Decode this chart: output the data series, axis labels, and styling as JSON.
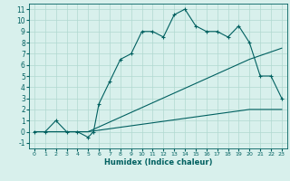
{
  "title": "",
  "xlabel": "Humidex (Indice chaleur)",
  "bg_color": "#d8f0ec",
  "line_color": "#006060",
  "grid_color": "#b0d8d0",
  "xlim": [
    -0.5,
    23.5
  ],
  "ylim": [
    -1.5,
    11.5
  ],
  "xticks": [
    0,
    1,
    2,
    3,
    4,
    5,
    6,
    7,
    8,
    9,
    10,
    11,
    12,
    13,
    14,
    15,
    16,
    17,
    18,
    19,
    20,
    21,
    22,
    23
  ],
  "yticks": [
    -1,
    0,
    1,
    2,
    3,
    4,
    5,
    6,
    7,
    8,
    9,
    10,
    11
  ],
  "line1_x": [
    0,
    1,
    2,
    3,
    4,
    5,
    5.5,
    6,
    7,
    8,
    9,
    10,
    11,
    12,
    13,
    14,
    15,
    16,
    17,
    18,
    19,
    20,
    21,
    22,
    23
  ],
  "line1_y": [
    0,
    0,
    1,
    0,
    0,
    -0.5,
    0,
    2.5,
    4.5,
    6.5,
    7,
    9,
    9,
    8.5,
    10.5,
    11,
    9.5,
    9,
    9,
    8.5,
    9.5,
    8,
    5,
    5,
    3
  ],
  "line2_x": [
    0,
    5,
    20,
    23
  ],
  "line2_y": [
    0,
    0,
    6.5,
    7.5
  ],
  "line3_x": [
    0,
    5,
    20,
    23
  ],
  "line3_y": [
    0,
    0,
    2,
    2
  ],
  "xlabel_fontsize": 6.0,
  "tick_fontsize_x": 4.5,
  "tick_fontsize_y": 5.5
}
